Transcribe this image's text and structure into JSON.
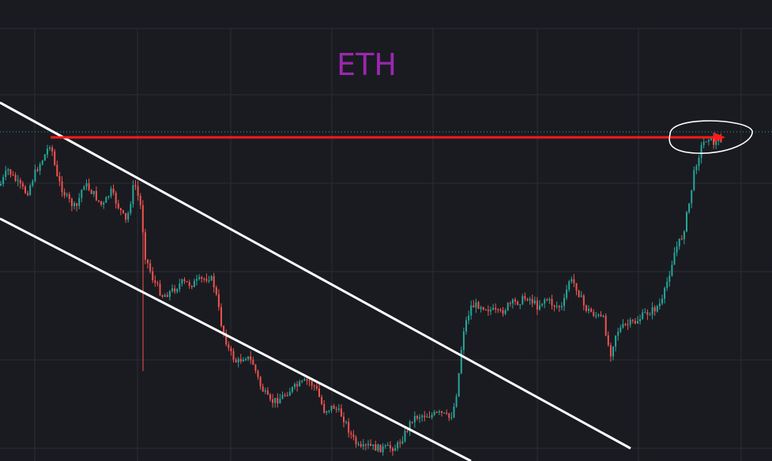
{
  "chart_data": {
    "type": "candlestick",
    "title": "ETH",
    "xlabel": "",
    "ylabel": "",
    "grid": true,
    "ylim": [
      0,
      584
    ],
    "colors": {
      "background": "#1a1b20",
      "grid": "#2b2d35",
      "up": "#26a69a",
      "down": "#ef5350",
      "title": "#9c27b0",
      "annotation": "#ff1a1a",
      "trendline": "#ffffff",
      "reference_line": "#26a69a"
    },
    "anchors": [
      [
        0,
        235
      ],
      [
        10,
        215
      ],
      [
        22,
        232
      ],
      [
        34,
        245
      ],
      [
        46,
        215
      ],
      [
        56,
        198
      ],
      [
        64,
        180
      ],
      [
        72,
        225
      ],
      [
        84,
        250
      ],
      [
        96,
        265
      ],
      [
        106,
        232
      ],
      [
        118,
        245
      ],
      [
        130,
        262
      ],
      [
        140,
        242
      ],
      [
        150,
        262
      ],
      [
        160,
        282
      ],
      [
        170,
        230
      ],
      [
        178,
        262
      ],
      [
        184,
        325
      ],
      [
        194,
        355
      ],
      [
        206,
        375
      ],
      [
        218,
        368
      ],
      [
        230,
        358
      ],
      [
        242,
        360
      ],
      [
        254,
        355
      ],
      [
        266,
        350
      ],
      [
        272,
        365
      ],
      [
        280,
        410
      ],
      [
        290,
        445
      ],
      [
        300,
        460
      ],
      [
        310,
        450
      ],
      [
        320,
        460
      ],
      [
        330,
        490
      ],
      [
        342,
        510
      ],
      [
        354,
        505
      ],
      [
        366,
        495
      ],
      [
        378,
        488
      ],
      [
        390,
        482
      ],
      [
        400,
        492
      ],
      [
        410,
        520
      ],
      [
        422,
        515
      ],
      [
        434,
        528
      ],
      [
        446,
        555
      ],
      [
        456,
        570
      ],
      [
        466,
        565
      ],
      [
        478,
        568
      ],
      [
        490,
        568
      ],
      [
        502,
        566
      ],
      [
        512,
        550
      ],
      [
        522,
        530
      ],
      [
        532,
        526
      ],
      [
        546,
        526
      ],
      [
        558,
        524
      ],
      [
        570,
        530
      ],
      [
        576,
        510
      ],
      [
        580,
        480
      ],
      [
        586,
        420
      ],
      [
        596,
        388
      ],
      [
        608,
        386
      ],
      [
        620,
        392
      ],
      [
        632,
        398
      ],
      [
        644,
        386
      ],
      [
        656,
        382
      ],
      [
        668,
        376
      ],
      [
        680,
        388
      ],
      [
        690,
        378
      ],
      [
        700,
        386
      ],
      [
        712,
        390
      ],
      [
        720,
        355
      ],
      [
        728,
        360
      ],
      [
        740,
        390
      ],
      [
        752,
        398
      ],
      [
        764,
        405
      ],
      [
        772,
        450
      ],
      [
        780,
        420
      ],
      [
        792,
        412
      ],
      [
        804,
        408
      ],
      [
        816,
        398
      ],
      [
        828,
        392
      ],
      [
        838,
        382
      ],
      [
        846,
        350
      ],
      [
        854,
        318
      ],
      [
        864,
        298
      ],
      [
        872,
        258
      ],
      [
        880,
        210
      ],
      [
        888,
        185
      ],
      [
        896,
        172
      ],
      [
        904,
        182
      ],
      [
        912,
        176
      ]
    ],
    "trendlines": [
      {
        "from": [
          0,
          130
        ],
        "to": [
          798,
          568
        ]
      },
      {
        "from": [
          0,
          277
        ],
        "to": [
          596,
          584
        ]
      }
    ],
    "reference_line": {
      "y": 167
    },
    "annotation_arrow": {
      "from": [
        64,
        174
      ],
      "to": [
        918,
        174
      ]
    },
    "annotation_ellipse": {
      "cx": 900,
      "cy": 174,
      "rx": 52,
      "ry": 22
    }
  }
}
